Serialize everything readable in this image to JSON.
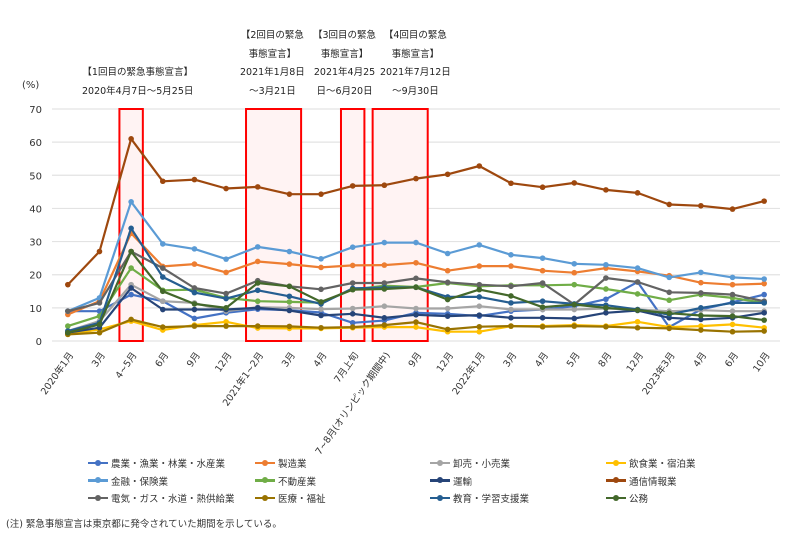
{
  "chart_data": {
    "type": "line",
    "ylabel": "(%)",
    "ylim": [
      0,
      70
    ],
    "yticks": [
      0,
      10,
      20,
      30,
      40,
      50,
      60,
      70
    ],
    "grid": true,
    "legend_position": "bottom",
    "categories": [
      "2020年1月",
      "3月",
      "4~5月",
      "6月",
      "9月",
      "12月",
      "2021年1~2月",
      "3月",
      "4月",
      "7月上旬",
      "7~8月(オリンピック期間中)",
      "9月",
      "12月",
      "2022年1月",
      "3月",
      "4月",
      "5月",
      "8月",
      "12月",
      "2023年3月",
      "4月",
      "6月",
      "10月"
    ],
    "series": [
      {
        "name": "農業・漁業・林業・水産業",
        "color": "#4472c4",
        "values": [
          9,
          9,
          14,
          12,
          6.8,
          8.5,
          9.6,
          9.3,
          8.6,
          5.5,
          6.2,
          8.5,
          8.2,
          7.5,
          9,
          9.5,
          10.5,
          12.6,
          17.8,
          4.2,
          9.5,
          11.7,
          14
        ]
      },
      {
        "name": "製造業",
        "color": "#ed7d31",
        "values": [
          8,
          12,
          32.5,
          22.5,
          23.2,
          20.7,
          24,
          23.2,
          22.2,
          22.8,
          22.9,
          23.6,
          21.2,
          22.6,
          22.6,
          21.2,
          20.6,
          22,
          21,
          19.7,
          17.6,
          17,
          17.3
        ]
      },
      {
        "name": "卸売・小売業",
        "color": "#a5a5a5",
        "values": [
          3,
          6,
          17,
          12,
          11.5,
          9,
          10.2,
          10,
          9.6,
          9.8,
          10.5,
          9.8,
          9.8,
          10.5,
          9.5,
          9.5,
          9.5,
          9.8,
          9.5,
          9,
          9.3,
          9,
          9
        ]
      },
      {
        "name": "飲食業・宿泊業",
        "color": "#ffc000",
        "values": [
          2,
          3.5,
          6,
          3.3,
          4.8,
          5.8,
          3.9,
          3.8,
          3.8,
          4,
          4.2,
          4.2,
          2.8,
          2.8,
          4.5,
          4.5,
          4.8,
          4.5,
          5.8,
          4.2,
          4.5,
          5,
          4
        ]
      },
      {
        "name": "金融・保険業",
        "color": "#5b9bd5",
        "values": [
          9,
          13,
          42,
          29.3,
          27.8,
          24.7,
          28.4,
          27,
          24.8,
          28.3,
          29.7,
          29.7,
          26.4,
          29,
          26,
          25,
          23.3,
          23,
          22,
          19.2,
          20.7,
          19.2,
          18.7
        ]
      },
      {
        "name": "不動産業",
        "color": "#70ad47",
        "values": [
          4.5,
          7.5,
          22,
          15.3,
          15.5,
          13,
          12,
          11.8,
          11.6,
          15.5,
          16.7,
          16.3,
          17.5,
          16.5,
          16.8,
          16.8,
          17,
          15.7,
          14.2,
          12.3,
          14,
          13,
          11.5
        ]
      },
      {
        "name": "運輸",
        "color": "#264478",
        "values": [
          2.5,
          4,
          16,
          9.5,
          9.5,
          9.5,
          10,
          9.2,
          7.7,
          8.2,
          7,
          7.9,
          7.5,
          7.8,
          7,
          7,
          6.8,
          8.5,
          9.2,
          7,
          6.5,
          7,
          8.5
        ]
      },
      {
        "name": "通信情報業",
        "color": "#9e480e",
        "values": [
          17,
          27,
          61,
          48.2,
          48.7,
          46,
          46.5,
          44.3,
          44.3,
          46.8,
          47,
          49,
          50.3,
          52.8,
          47.6,
          46.4,
          47.7,
          45.6,
          44.7,
          41.2,
          40.8,
          39.8,
          42.2
        ]
      },
      {
        "name": "電気・ガス・水道・熱供給業",
        "color": "#636363",
        "values": [
          9,
          11.5,
          27,
          22,
          16,
          14.3,
          18.2,
          16.5,
          15.6,
          17.5,
          17.5,
          18.9,
          17.7,
          17,
          16.5,
          17.5,
          11,
          19,
          17.8,
          14.7,
          14.5,
          14,
          12
        ]
      },
      {
        "name": "医療・福祉",
        "color": "#997300",
        "values": [
          2,
          2.5,
          6.5,
          4.2,
          4.5,
          4.5,
          4.5,
          4.4,
          4,
          4.2,
          4.8,
          5.7,
          3.5,
          4.3,
          4.5,
          4.3,
          4.5,
          4.3,
          4,
          3.8,
          3.3,
          2.8,
          3
        ]
      },
      {
        "name": "教育・学習支援業",
        "color": "#255e91",
        "values": [
          3,
          5.5,
          34,
          19.3,
          14.6,
          12.8,
          15.3,
          13.5,
          11.2,
          15.9,
          16.1,
          16.2,
          13.3,
          13.3,
          11.5,
          12,
          11.2,
          10.8,
          9.5,
          8,
          10,
          11.5,
          11.5
        ]
      },
      {
        "name": "公務",
        "color": "#43682b",
        "values": [
          2.5,
          5,
          27,
          15,
          11.2,
          10,
          17.5,
          16.5,
          11.8,
          15.5,
          15.7,
          16.2,
          12.5,
          15.5,
          13.6,
          10.2,
          11,
          10,
          9.3,
          8.4,
          7.7,
          7.5,
          6.3
        ]
      }
    ],
    "highlight_ranges": [
      {
        "from": "4~5月",
        "to": "4~5月",
        "lines": [
          "【1回目の緊急事態宣言】",
          "2020年4月7日～5月25日"
        ]
      },
      {
        "from": "2021年1~2月",
        "to": "3月",
        "lines": [
          "【2回目の緊急",
          "事態宣言】",
          "2021年1月8日",
          "～3月21日"
        ]
      },
      {
        "from": "7月上旬",
        "to": "7月上旬",
        "lines": [
          "【3回目の緊急",
          "事態宣言】",
          "2021年4月25",
          "日～6月20日"
        ]
      },
      {
        "from": "7~8月(オリンピック期間中)",
        "to": "9月",
        "lines": [
          "【4回目の緊急",
          "事態宣言】",
          "2021年7月12日",
          "～9月30日"
        ]
      }
    ],
    "highlight_color": "#ff0000"
  },
  "note": "(注) 緊急事態宣言は東京都に発令されていた期間を示している。"
}
